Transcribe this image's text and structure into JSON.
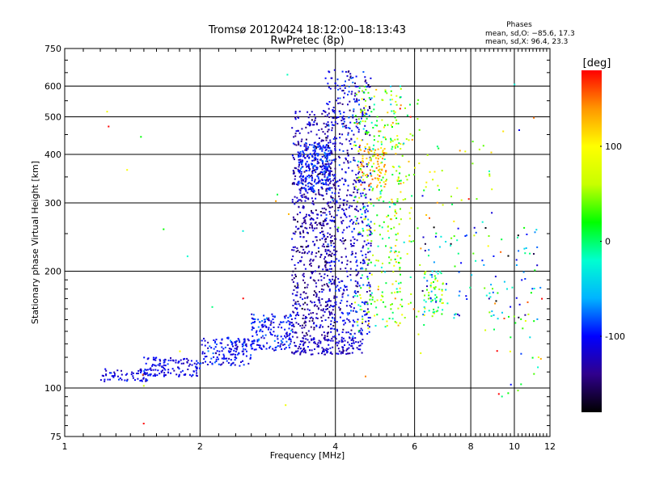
{
  "chart_data": {
    "type": "scatter",
    "title": "Tromsø 20120424 18:12:00–18:13:43",
    "subtitle": "RwPretec (8p)",
    "xlabel": "Frequency [MHz]",
    "ylabel": "Stationary phase Virtual Height [km]",
    "x_scale": "log",
    "y_scale": "log",
    "xlim": [
      1,
      12
    ],
    "ylim": [
      75,
      750
    ],
    "x_ticks": [
      1,
      2,
      4,
      6,
      8,
      10,
      12
    ],
    "y_ticks": [
      75,
      100,
      200,
      300,
      400,
      500,
      600,
      750
    ],
    "grid": true,
    "phase_header": "Phases",
    "phase_stats": [
      "mean, sd,O: −85.6, 17.3",
      "mean, sd,X:  96.4, 23.3"
    ],
    "colorbar": {
      "label": "[deg]",
      "range": [
        -180,
        180
      ],
      "ticks": [
        100,
        0,
        -100
      ],
      "colors": [
        "#000000",
        "#30008c",
        "#0000ff",
        "#00b4ff",
        "#00ffd0",
        "#00ff00",
        "#c8ff00",
        "#ffff00",
        "#ff9600",
        "#ff0000"
      ]
    },
    "clusters": [
      {
        "x_range": [
          1.2,
          1.55
        ],
        "y_range": [
          104,
          112
        ],
        "count": 70,
        "phase": -110,
        "spread": 18
      },
      {
        "x_range": [
          1.5,
          2.0
        ],
        "y_range": [
          107,
          120
        ],
        "count": 120,
        "phase": -110,
        "spread": 18
      },
      {
        "x_range": [
          2.0,
          2.6
        ],
        "y_range": [
          114,
          135
        ],
        "count": 150,
        "phase": -105,
        "spread": 20
      },
      {
        "x_range": [
          2.6,
          3.2
        ],
        "y_range": [
          125,
          155
        ],
        "count": 160,
        "phase": -100,
        "spread": 22
      },
      {
        "x_range": [
          3.2,
          4.6
        ],
        "y_range": [
          122,
          135
        ],
        "count": 160,
        "phase": -120,
        "spread": 15
      },
      {
        "x_range": [
          3.2,
          4.0
        ],
        "y_range": [
          135,
          520
        ],
        "count": 700,
        "phase": -130,
        "spread": 25
      },
      {
        "x_range": [
          3.3,
          3.9
        ],
        "y_range": [
          320,
          430
        ],
        "count": 220,
        "phase": -95,
        "spread": 18
      },
      {
        "x_range": [
          3.8,
          4.8
        ],
        "y_range": [
          135,
          660
        ],
        "count": 650,
        "phase": -115,
        "spread": 30
      },
      {
        "x_range": [
          4.4,
          5.6
        ],
        "y_range": [
          140,
          600
        ],
        "count": 320,
        "phase": 40,
        "spread": 70
      },
      {
        "x_range": [
          4.5,
          5.2
        ],
        "y_range": [
          330,
          420
        ],
        "count": 80,
        "phase": 130,
        "spread": 25
      },
      {
        "x_range": [
          5.3,
          6.2
        ],
        "y_range": [
          150,
          560
        ],
        "count": 90,
        "phase": 60,
        "spread": 70
      },
      {
        "x_range": [
          6.3,
          7.0
        ],
        "y_range": [
          150,
          200
        ],
        "count": 60,
        "phase": 20,
        "spread": 80
      },
      {
        "x_range": [
          6.2,
          11.5
        ],
        "y_range": [
          150,
          260
        ],
        "count": 110,
        "phase": -60,
        "spread": 90
      },
      {
        "x_range": [
          6.2,
          9.0
        ],
        "y_range": [
          260,
          440
        ],
        "count": 35,
        "phase": 60,
        "spread": 90
      },
      {
        "x_range": [
          9.0,
          11.5
        ],
        "y_range": [
          95,
          170
        ],
        "count": 25,
        "phase": 40,
        "spread": 100
      },
      {
        "x_range": [
          1.2,
          12.0
        ],
        "y_range": [
          80,
          650
        ],
        "count": 40,
        "phase": 60,
        "spread": 110
      }
    ]
  }
}
